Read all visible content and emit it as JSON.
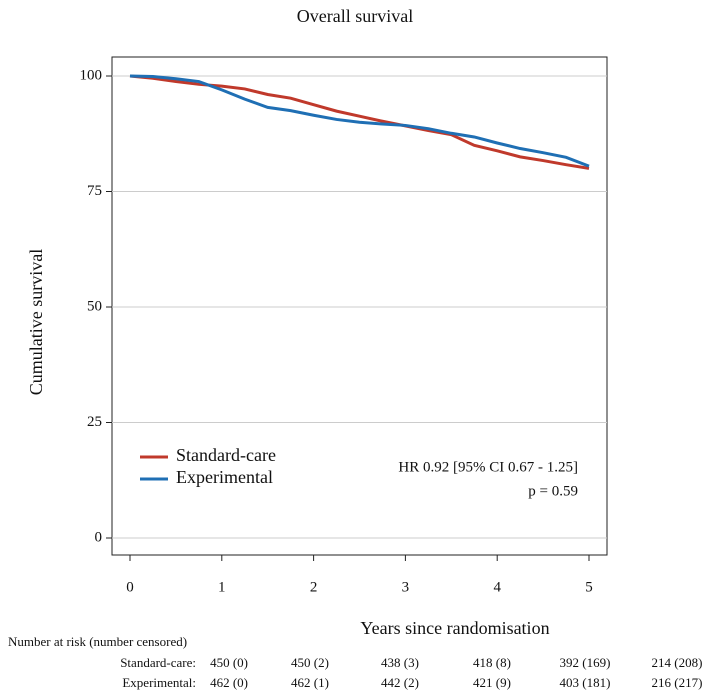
{
  "chart_data": {
    "type": "line",
    "title": "Overall survival",
    "xlabel": "Years since randomisation",
    "ylabel": "Cumulative survival",
    "x": [
      0,
      0.25,
      0.5,
      0.75,
      1,
      1.25,
      1.5,
      1.75,
      2,
      2.25,
      2.5,
      2.75,
      3,
      3.25,
      3.5,
      3.75,
      4,
      4.25,
      4.5,
      4.75,
      5
    ],
    "series": [
      {
        "name": "Standard-care",
        "color": "#c0392b",
        "values": [
          100,
          99.5,
          98.8,
          98.2,
          97.8,
          97.2,
          96,
          95.2,
          93.8,
          92.4,
          91.3,
          90.2,
          89.2,
          88.2,
          87.3,
          85,
          83.8,
          82.5,
          81.7,
          80.8,
          80
        ]
      },
      {
        "name": "Experimental",
        "color": "#1f6fb4",
        "values": [
          100,
          99.9,
          99.4,
          98.8,
          97,
          95,
          93.2,
          92.5,
          91.5,
          90.6,
          90,
          89.6,
          89.3,
          88.6,
          87.6,
          86.8,
          85.5,
          84.3,
          83.4,
          82.4,
          80.5
        ]
      }
    ],
    "xlim": [
      0,
      5
    ],
    "xticks": [
      0,
      1,
      2,
      3,
      4,
      5
    ],
    "ylim": [
      0,
      100
    ],
    "yticks": [
      0,
      25,
      50,
      75,
      100
    ],
    "grid": true,
    "legend": "bottom left",
    "annotations": [
      "HR 0.92 [95% CI 0.67 - 1.25]",
      "p = 0.59"
    ]
  },
  "risk_table": {
    "title": "Number at risk (number censored)",
    "rows": [
      {
        "label": "Standard-care:",
        "cells": [
          "450 (0)",
          "450 (2)",
          "438 (3)",
          "418 (8)",
          "392 (169)",
          "214 (208)"
        ]
      },
      {
        "label": "Experimental:",
        "cells": [
          "462 (0)",
          "462 (1)",
          "442 (2)",
          "421 (9)",
          "403 (181)",
          "216 (217)"
        ]
      }
    ]
  }
}
